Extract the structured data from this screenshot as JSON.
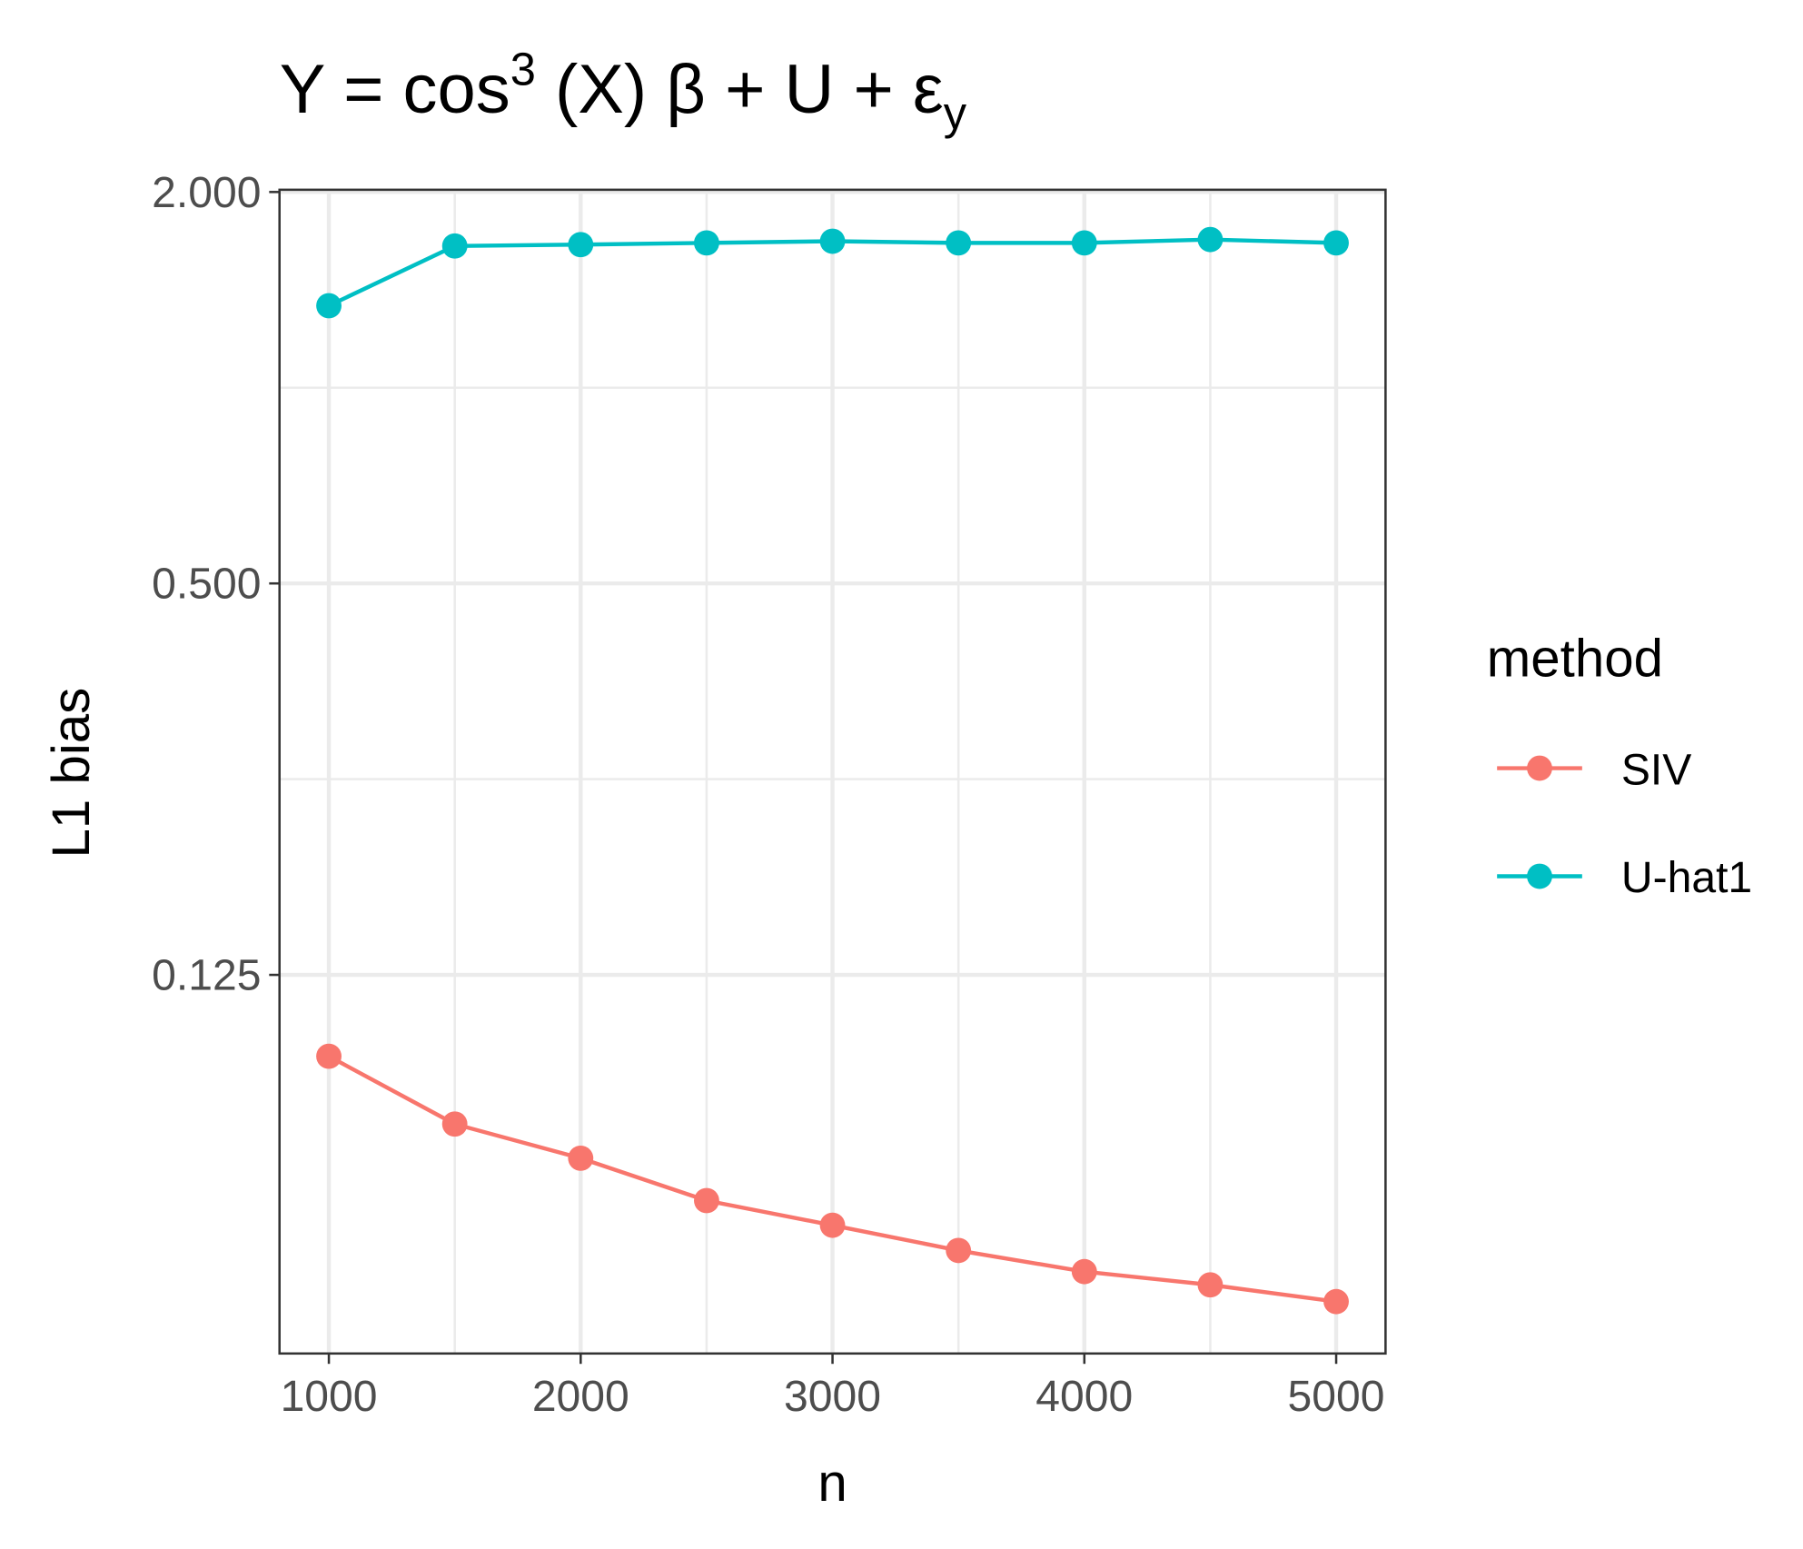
{
  "chart_data": {
    "type": "line",
    "title": [
      "Y = cos",
      "3",
      " (X) β + U + ε",
      "y"
    ],
    "x_label": "n",
    "y_label": "L1 bias",
    "legend_title": "method",
    "x": [
      1000,
      1500,
      2000,
      2500,
      3000,
      3500,
      4000,
      4500,
      5000
    ],
    "series": [
      {
        "name": "SIV",
        "color": "#F8766D",
        "values": [
          0.0937,
          0.0737,
          0.0653,
          0.0562,
          0.0515,
          0.0471,
          0.0437,
          0.0417,
          0.0393
        ]
      },
      {
        "name": "U-hat1",
        "color": "#00BFC4",
        "values": [
          1.337,
          1.652,
          1.66,
          1.67,
          1.68,
          1.67,
          1.67,
          1.69,
          1.67
        ]
      }
    ],
    "xlim": [
      804,
      5196
    ],
    "xticks": [
      1000,
      2000,
      3000,
      4000,
      5000
    ],
    "ylim": [
      0.0327,
      2.016
    ],
    "log_y": true,
    "log_base": 2,
    "yticks": [
      {
        "value": 0.125,
        "label": "0.125"
      },
      {
        "value": 0.5,
        "label": "0.500"
      },
      {
        "value": 2,
        "label": "2.000"
      }
    ],
    "grid": true,
    "legend_position": "right"
  }
}
